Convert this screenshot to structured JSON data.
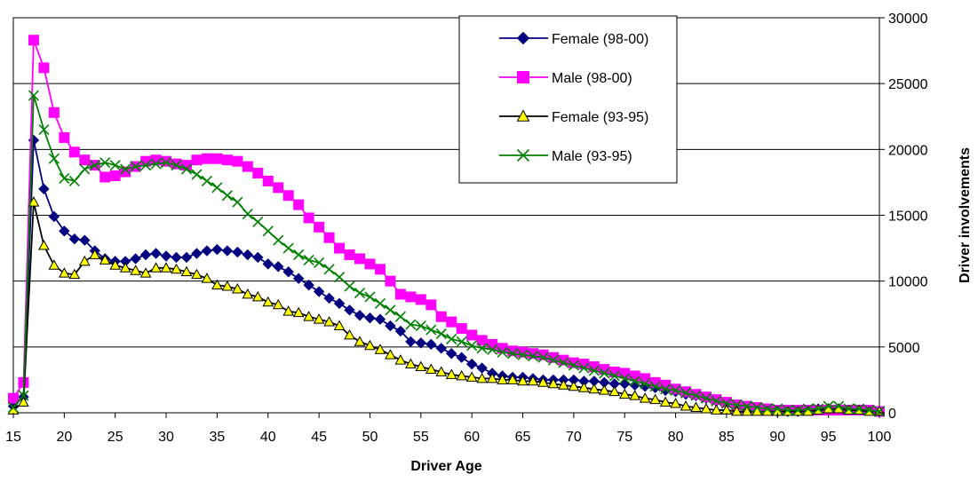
{
  "chart_data": {
    "type": "line",
    "title": "",
    "xlabel": "Driver Age",
    "ylabel": "Driver involvements",
    "xlim": [
      15,
      100
    ],
    "ylim": [
      0,
      30000
    ],
    "xticks": [
      "15",
      "20",
      "25",
      "30",
      "35",
      "40",
      "45",
      "50",
      "55",
      "60",
      "65",
      "70",
      "75",
      "80",
      "85",
      "90",
      "95",
      "100"
    ],
    "yticks": [
      "0",
      "5000",
      "10000",
      "15000",
      "20000",
      "25000",
      "30000"
    ],
    "grid": "horizontal",
    "legend_position": "top-right",
    "x": [
      15,
      16,
      17,
      18,
      19,
      20,
      21,
      22,
      23,
      24,
      25,
      26,
      27,
      28,
      29,
      30,
      31,
      32,
      33,
      34,
      35,
      36,
      37,
      38,
      39,
      40,
      41,
      42,
      43,
      44,
      45,
      46,
      47,
      48,
      49,
      50,
      51,
      52,
      53,
      54,
      55,
      56,
      57,
      58,
      59,
      60,
      61,
      62,
      63,
      64,
      65,
      66,
      67,
      68,
      69,
      70,
      71,
      72,
      73,
      74,
      75,
      76,
      77,
      78,
      79,
      80,
      81,
      82,
      83,
      84,
      85,
      86,
      87,
      88,
      89,
      90,
      91,
      92,
      93,
      94,
      95,
      96,
      97,
      98,
      99,
      100
    ],
    "series": [
      {
        "name": "Female (98-00)",
        "color": "#000080",
        "marker": "diamond",
        "values": [
          500,
          1200,
          20700,
          17000,
          14900,
          13800,
          13200,
          13100,
          12300,
          11700,
          11500,
          11500,
          11700,
          12000,
          12100,
          11900,
          11800,
          11800,
          12100,
          12300,
          12400,
          12300,
          12200,
          12000,
          11800,
          11300,
          11100,
          10700,
          10200,
          9700,
          9200,
          8700,
          8300,
          7800,
          7400,
          7200,
          7100,
          6600,
          6200,
          5400,
          5300,
          5200,
          4900,
          4500,
          4200,
          3700,
          3400,
          3000,
          2800,
          2700,
          2700,
          2600,
          2500,
          2500,
          2500,
          2500,
          2400,
          2400,
          2300,
          2200,
          2200,
          2100,
          2000,
          1900,
          1700,
          1600,
          1400,
          1300,
          1100,
          900,
          700,
          600,
          400,
          300,
          200,
          100,
          100,
          100,
          200,
          300,
          300,
          200,
          200,
          200,
          200,
          100
        ]
      },
      {
        "name": "Male (98-00)",
        "color": "#ff00ff",
        "marker": "square",
        "values": [
          1100,
          2300,
          28300,
          26200,
          22800,
          20900,
          19800,
          19200,
          18800,
          17900,
          18000,
          18300,
          18700,
          19100,
          19200,
          19100,
          18900,
          18800,
          19200,
          19300,
          19300,
          19200,
          19100,
          18700,
          18200,
          17600,
          17100,
          16500,
          15800,
          14800,
          14100,
          13300,
          12500,
          12000,
          11700,
          11300,
          10900,
          10000,
          9000,
          8800,
          8600,
          8200,
          7300,
          6900,
          6400,
          5900,
          5500,
          5200,
          4900,
          4700,
          4600,
          4500,
          4400,
          4200,
          4000,
          3800,
          3700,
          3500,
          3300,
          3100,
          3000,
          2800,
          2600,
          2300,
          2100,
          1800,
          1600,
          1400,
          1200,
          1000,
          800,
          600,
          500,
          400,
          300,
          200,
          200,
          200,
          200,
          200,
          200,
          200,
          200,
          200,
          200,
          100
        ]
      },
      {
        "name": "Female (93-95)",
        "color": "#000000",
        "fill": "#ffff00",
        "marker": "triangle",
        "values": [
          200,
          800,
          16000,
          12700,
          11200,
          10600,
          10500,
          11500,
          12000,
          11600,
          11200,
          11000,
          10800,
          10600,
          11000,
          11000,
          10900,
          10700,
          10500,
          10200,
          9700,
          9600,
          9400,
          9000,
          8800,
          8400,
          8200,
          7700,
          7600,
          7300,
          7100,
          6900,
          6600,
          5900,
          5400,
          5100,
          4800,
          4400,
          4000,
          3700,
          3500,
          3300,
          3100,
          2900,
          2800,
          2700,
          2600,
          2600,
          2500,
          2500,
          2400,
          2400,
          2300,
          2200,
          2100,
          2000,
          1900,
          1800,
          1700,
          1600,
          1400,
          1300,
          1100,
          1000,
          800,
          700,
          500,
          400,
          300,
          200,
          200,
          100,
          100,
          100,
          100,
          100,
          100,
          100,
          100,
          200,
          300,
          300,
          200,
          200,
          100,
          100
        ]
      },
      {
        "name": "Male (93-95)",
        "color": "#008000",
        "marker": "x",
        "values": [
          400,
          1300,
          24100,
          21500,
          19300,
          17800,
          17600,
          18500,
          18800,
          19000,
          18800,
          18500,
          18700,
          18800,
          18900,
          19000,
          18800,
          18500,
          18100,
          17600,
          17100,
          16500,
          16000,
          15100,
          14500,
          13800,
          13100,
          12500,
          12000,
          11600,
          11400,
          10900,
          10300,
          9600,
          9100,
          8800,
          8300,
          7800,
          7300,
          6700,
          6600,
          6300,
          6000,
          5600,
          5400,
          5100,
          4900,
          4800,
          4600,
          4500,
          4400,
          4300,
          4200,
          4000,
          3800,
          3600,
          3400,
          3200,
          3000,
          2800,
          2600,
          2400,
          2200,
          2000,
          1800,
          1700,
          1500,
          1300,
          1100,
          900,
          700,
          600,
          500,
          400,
          300,
          300,
          200,
          200,
          300,
          300,
          500,
          500,
          300,
          300,
          200,
          100
        ]
      }
    ]
  }
}
